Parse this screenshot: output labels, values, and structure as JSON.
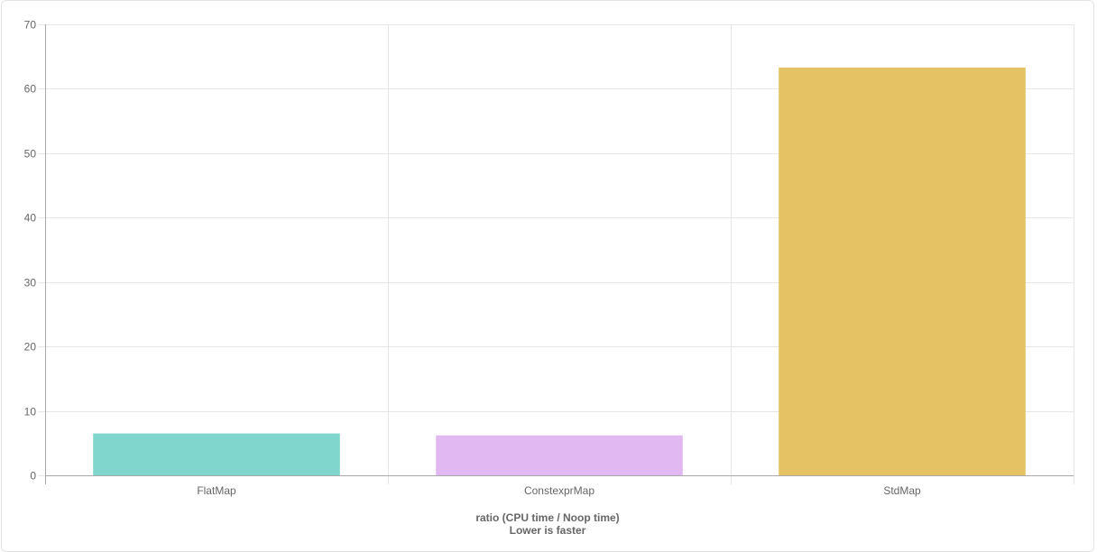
{
  "chart_data": {
    "type": "bar",
    "categories": [
      "FlatMap",
      "ConstexprMap",
      "StdMap"
    ],
    "values": [
      6.5,
      6.2,
      63.3
    ],
    "colors": [
      "#80d6cc",
      "#e2b8f2",
      "#e5c263"
    ],
    "ylim": [
      0,
      70
    ],
    "yticks": [
      0,
      10,
      20,
      30,
      40,
      50,
      60,
      70
    ],
    "xlabel_line1": "ratio (CPU time / Noop time)",
    "xlabel_line2": "Lower is faster",
    "grid": true,
    "legend": "none"
  }
}
